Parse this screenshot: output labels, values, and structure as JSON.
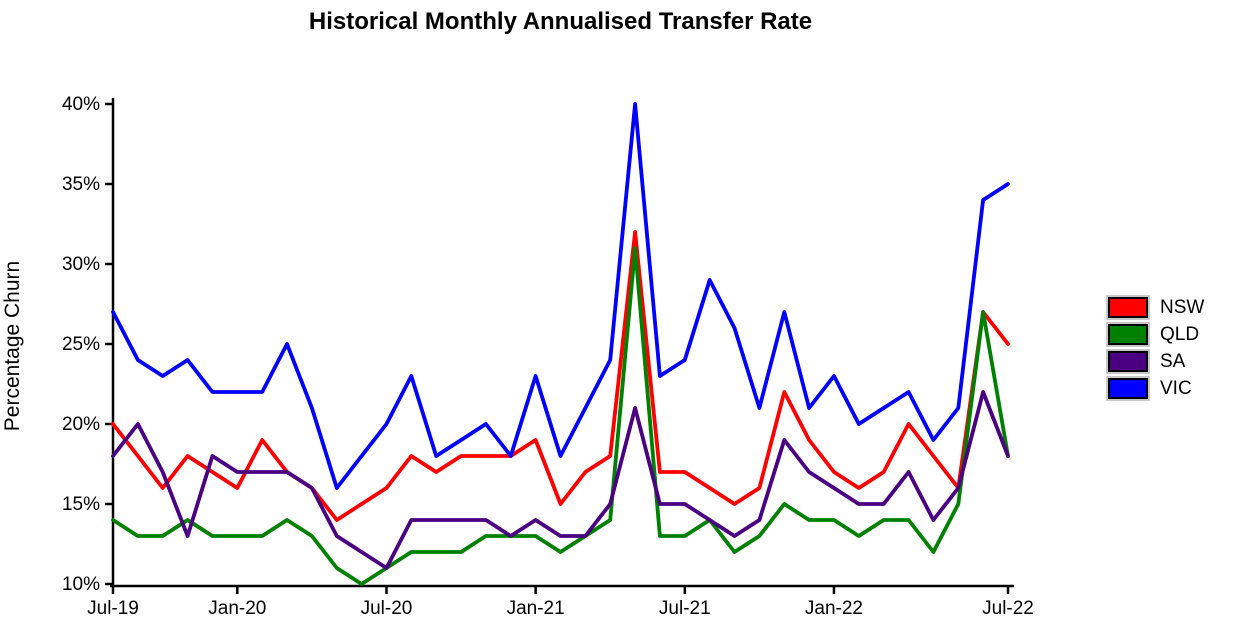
{
  "title": "Historical Monthly Annualised Transfer Rate",
  "y_axis_label": "Percentage Churn",
  "legend": [
    {
      "label": "NSW",
      "color": "#FF0000"
    },
    {
      "label": "QLD",
      "color": "#008000"
    },
    {
      "label": "SA",
      "color": "#4B0082"
    },
    {
      "label": "VIC",
      "color": "#0000FF"
    }
  ],
  "chart_data": {
    "type": "line",
    "title": "Historical Monthly Annualised Transfer Rate",
    "xlabel": "",
    "ylabel": "Percentage Churn",
    "ylim": [
      10,
      40
    ],
    "grid": false,
    "legend_position": "right",
    "axis_color": "#000000",
    "background_color": "#ffffff",
    "y_tick_values": [
      10,
      15,
      20,
      25,
      30,
      35,
      40
    ],
    "y_tick_labels": [
      "10%",
      "15%",
      "20%",
      "25%",
      "30%",
      "35%",
      "40%"
    ],
    "x_categories": [
      "Jul-19",
      "Aug-19",
      "Sep-19",
      "Oct-19",
      "Nov-19",
      "Dec-19",
      "Jan-20",
      "Feb-20",
      "Mar-20",
      "Apr-20",
      "May-20",
      "Jun-20",
      "Jul-20",
      "Aug-20",
      "Sep-20",
      "Oct-20",
      "Nov-20",
      "Dec-20",
      "Jan-21",
      "Feb-21",
      "Mar-21",
      "Apr-21",
      "May-21",
      "Jun-21",
      "Jul-21",
      "Aug-21",
      "Sep-21",
      "Oct-21",
      "Nov-21",
      "Dec-21",
      "Jan-22",
      "Feb-22",
      "Mar-22",
      "Apr-22",
      "May-22",
      "Jun-22",
      "Jul-22"
    ],
    "x_tick_indices": [
      1,
      6,
      12,
      18,
      24,
      30,
      37
    ],
    "x_tick_labels": [
      "Jul-19",
      "Jan-20",
      "Jul-20",
      "Jan-21",
      "Jul-21",
      "Jan-22",
      "Jul-22"
    ],
    "series": [
      {
        "name": "NSW",
        "color": "#FF0000",
        "values": [
          20,
          18,
          16,
          18,
          17,
          16,
          19,
          17,
          16,
          14,
          15,
          16,
          18,
          17,
          18,
          18,
          18,
          19,
          15,
          17,
          18,
          32,
          17,
          17,
          16,
          15,
          16,
          22,
          19,
          17,
          16,
          17,
          20,
          18,
          16,
          27,
          25
        ]
      },
      {
        "name": "QLD",
        "color": "#008000",
        "values": [
          14,
          13,
          13,
          14,
          13,
          13,
          13,
          14,
          13,
          11,
          10,
          11,
          12,
          12,
          12,
          13,
          13,
          13,
          12,
          13,
          14,
          31,
          13,
          13,
          14,
          12,
          13,
          15,
          14,
          14,
          13,
          14,
          14,
          12,
          15,
          27,
          18
        ]
      },
      {
        "name": "SA",
        "color": "#4B0082",
        "values": [
          18,
          20,
          17,
          13,
          18,
          17,
          17,
          17,
          16,
          13,
          12,
          11,
          14,
          14,
          14,
          14,
          13,
          14,
          13,
          13,
          15,
          21,
          15,
          15,
          14,
          13,
          14,
          19,
          17,
          16,
          15,
          15,
          17,
          14,
          16,
          22,
          18
        ]
      },
      {
        "name": "VIC",
        "color": "#0000FF",
        "values": [
          27,
          24,
          23,
          24,
          22,
          22,
          22,
          25,
          21,
          16,
          18,
          20,
          23,
          18,
          19,
          20,
          18,
          23,
          18,
          21,
          24,
          40,
          23,
          24,
          29,
          26,
          21,
          27,
          21,
          23,
          20,
          21,
          22,
          19,
          21,
          34,
          35
        ]
      }
    ]
  }
}
